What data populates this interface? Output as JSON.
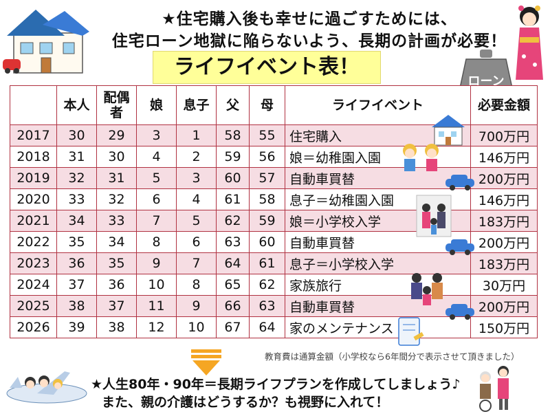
{
  "header": {
    "line1": "★住宅購入後も幸せに過ごすためには、",
    "line2": "住宅ローン地獄に陥らないよう、長期の計画が必要！"
  },
  "banner": "ライフイベント表！",
  "weight_label": "ローン",
  "table": {
    "columns": [
      "",
      "本人",
      "配偶者",
      "娘",
      "息子",
      "父",
      "母",
      "ライフイベント",
      "必要金額"
    ],
    "rows": [
      [
        "2017",
        "30",
        "29",
        "3",
        "1",
        "58",
        "55",
        "住宅購入",
        "700万円"
      ],
      [
        "2018",
        "31",
        "30",
        "4",
        "2",
        "59",
        "56",
        "娘＝幼稚園入園",
        "146万円"
      ],
      [
        "2019",
        "32",
        "31",
        "5",
        "3",
        "60",
        "57",
        "自動車買替",
        "200万円"
      ],
      [
        "2020",
        "33",
        "32",
        "6",
        "4",
        "61",
        "58",
        "息子＝幼稚園入園",
        "146万円"
      ],
      [
        "2021",
        "34",
        "33",
        "7",
        "5",
        "62",
        "59",
        "娘＝小学校入学",
        "183万円"
      ],
      [
        "2022",
        "35",
        "34",
        "8",
        "6",
        "63",
        "60",
        "自動車買替",
        "200万円"
      ],
      [
        "2023",
        "36",
        "35",
        "9",
        "7",
        "64",
        "61",
        "息子＝小学校入学",
        "183万円"
      ],
      [
        "2024",
        "37",
        "36",
        "10",
        "8",
        "65",
        "62",
        "家族旅行",
        "30万円"
      ],
      [
        "2025",
        "38",
        "37",
        "11",
        "9",
        "66",
        "63",
        "自動車買替",
        "200万円"
      ],
      [
        "2026",
        "39",
        "38",
        "12",
        "10",
        "67",
        "64",
        "家のメンテナンス",
        "150万円"
      ]
    ]
  },
  "note": "教育費は通算金額（小学校なら6年間分で表示させて頂きました）",
  "footer": {
    "line1": "★人生80年・90年＝長期ライフプランを作成してしましょう♪",
    "line2": "また、親の介護はどうするか？も視野に入れて！"
  },
  "colors": {
    "border": "#b03040",
    "row_tint": "#f6dde3",
    "banner_bg": "#ffff99",
    "arrow": "#f5a623"
  }
}
